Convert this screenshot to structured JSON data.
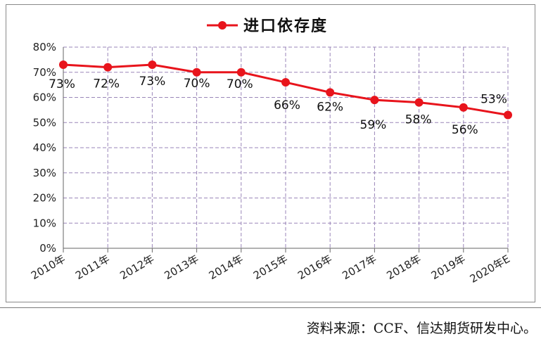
{
  "chart_data": {
    "type": "line",
    "title": "",
    "xlabel": "",
    "ylabel": "",
    "categories": [
      "2010年",
      "2011年",
      "2012年",
      "2013年",
      "2014年",
      "2015年",
      "2016年",
      "2017年",
      "2018年",
      "2019年",
      "2020年E"
    ],
    "series": [
      {
        "name": "进口依存度",
        "values": [
          73,
          72,
          73,
          70,
          70,
          66,
          62,
          59,
          58,
          56,
          53
        ],
        "labels": [
          "73%",
          "72%",
          "73%",
          "70%",
          "70%",
          "66%",
          "62%",
          "59%",
          "58%",
          "56%",
          "53%"
        ],
        "color": "#e8141c"
      }
    ],
    "y_ticks": [
      "0%",
      "10%",
      "20%",
      "30%",
      "40%",
      "50%",
      "60%",
      "70%",
      "80%"
    ],
    "ylim": [
      0,
      80
    ],
    "grid": true,
    "legend_position": "top-center"
  },
  "source_note": "资料来源：CCF、信达期货研发中心。"
}
